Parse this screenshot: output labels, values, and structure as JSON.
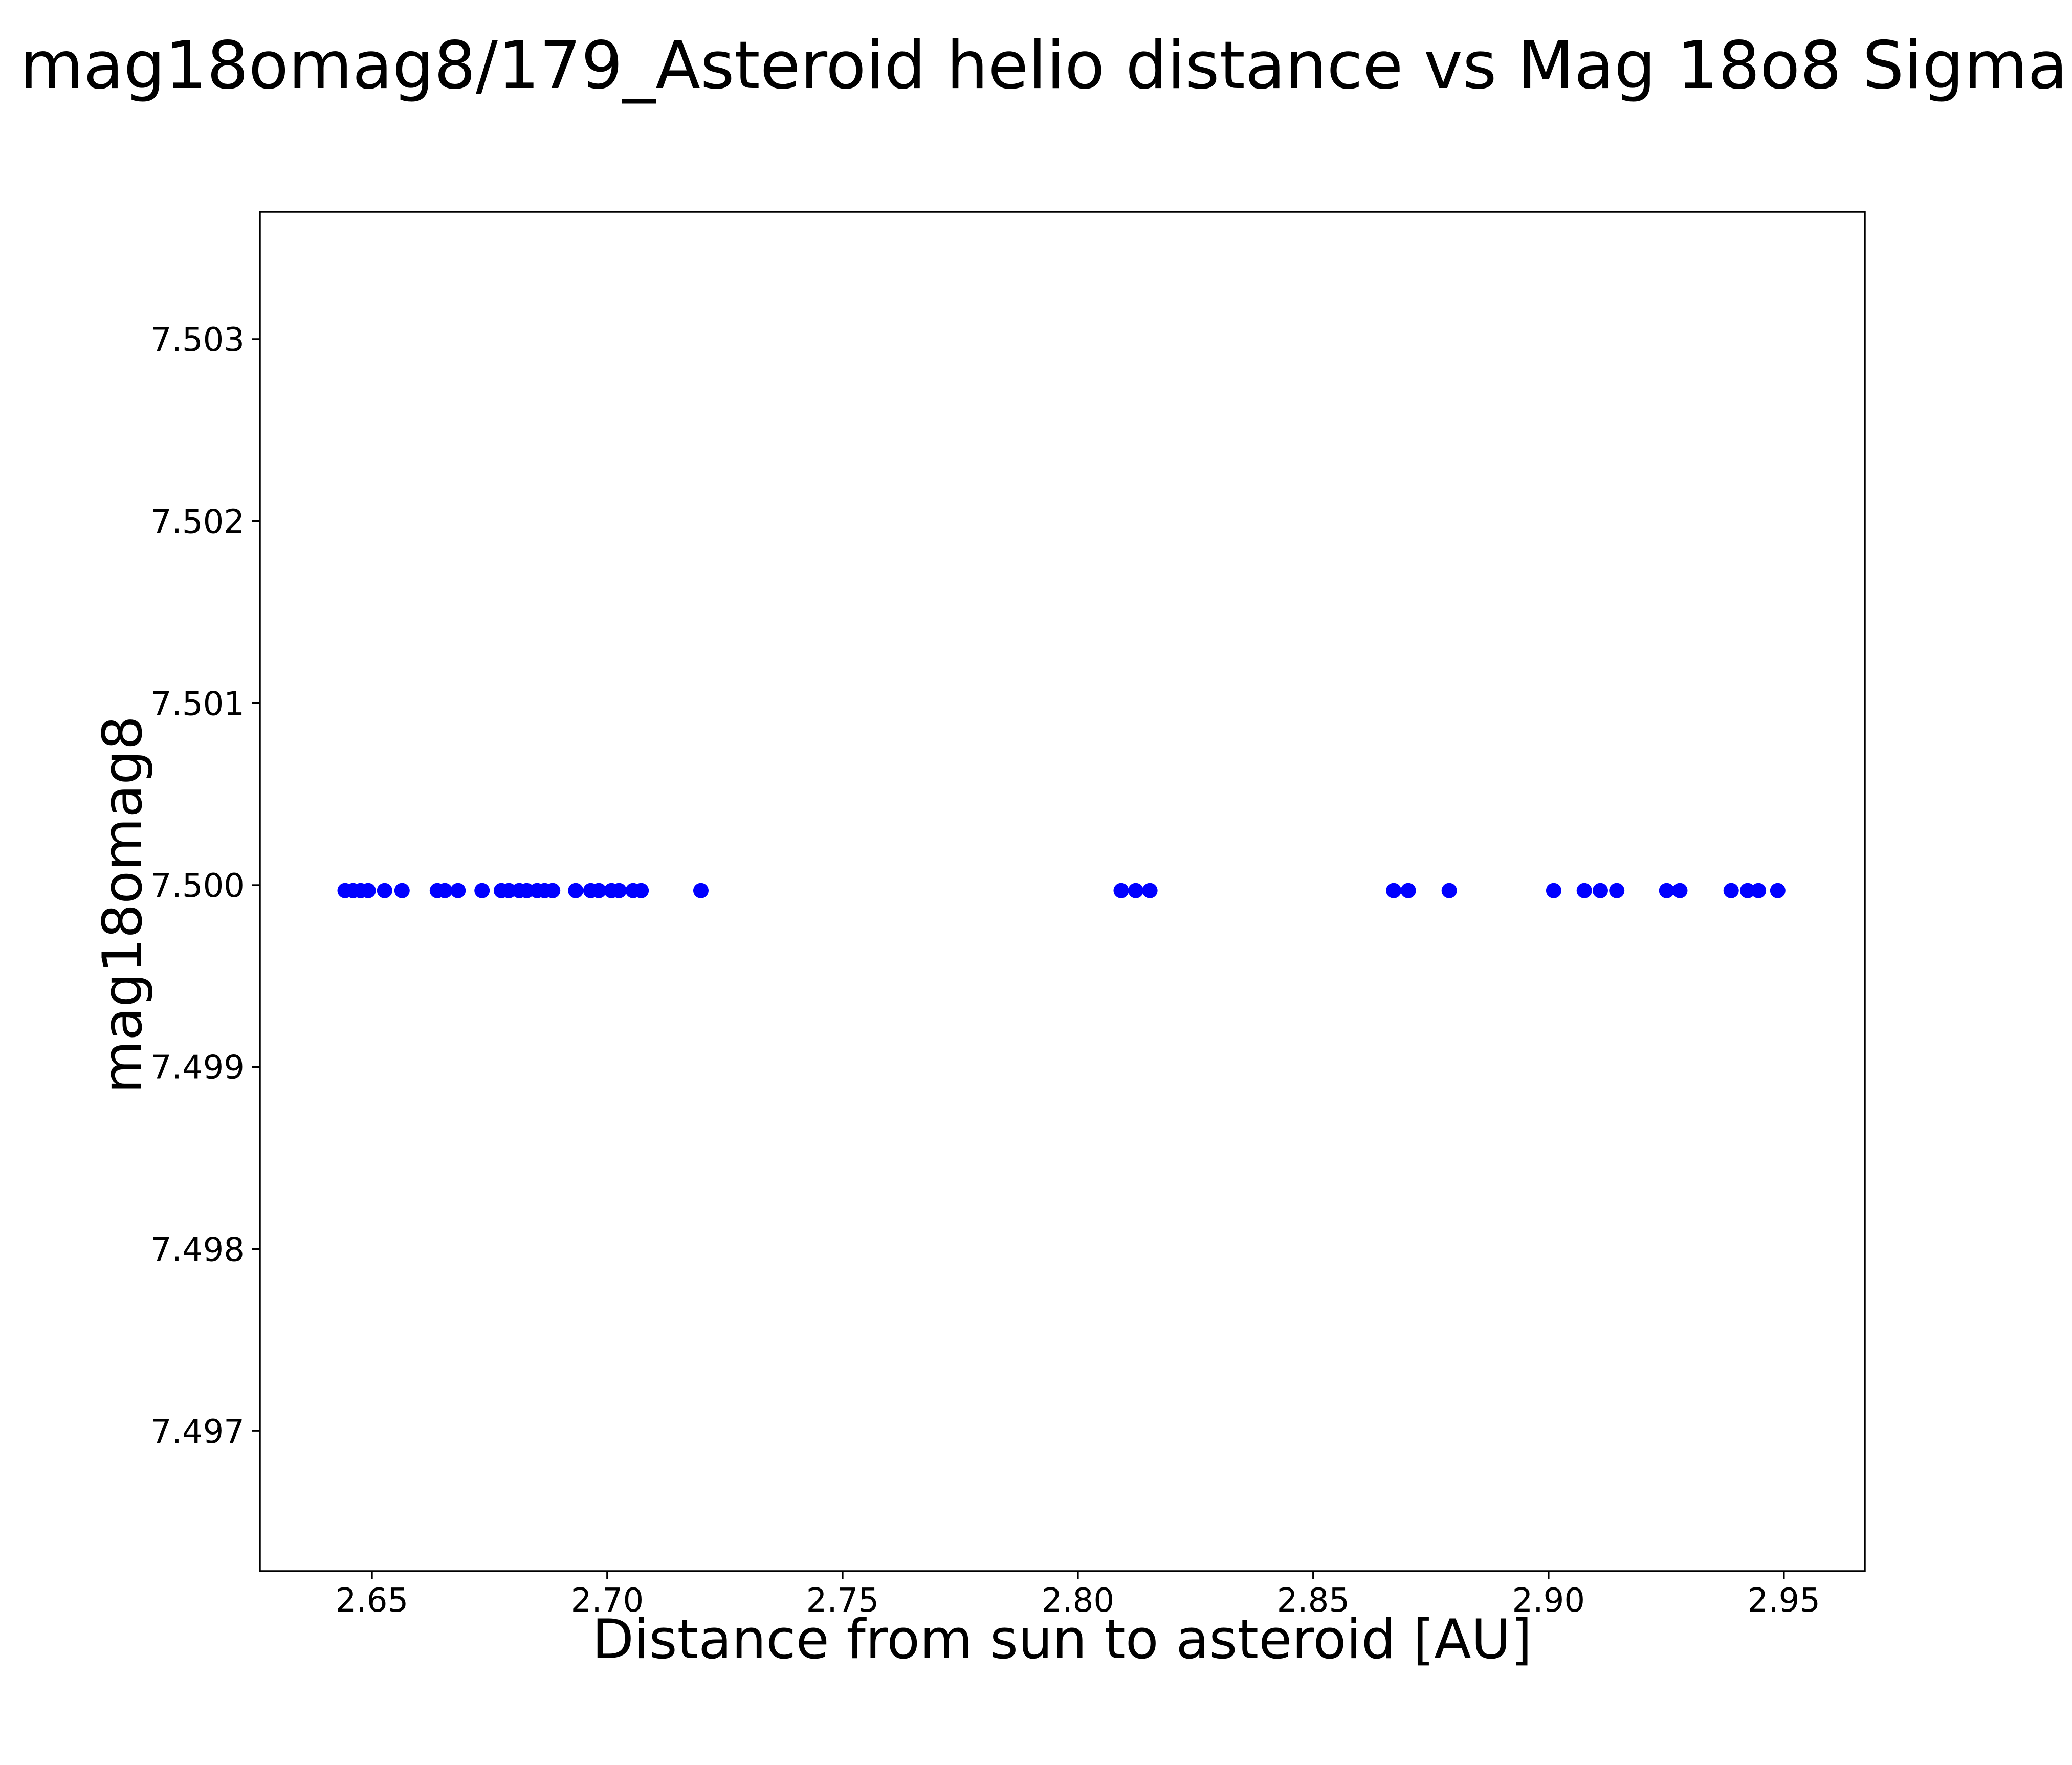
{
  "chart_data": {
    "type": "scatter",
    "title": "mag18omag8/179_Asteroid helio distance vs Mag 18o8 Sigma",
    "xlabel": "Distance from sun to asteroid [AU]",
    "ylabel": "mag18omag8",
    "grid": false,
    "legend": false,
    "marker_shape": "circle",
    "marker_color": "#0000ff",
    "axis_color": "#000000",
    "background_color": "#ffffff",
    "xlim": [
      2.6262,
      2.9672
    ],
    "ylim": [
      7.49623,
      7.5037
    ],
    "xticks": [
      2.65,
      2.7,
      2.75,
      2.8,
      2.85,
      2.9,
      2.95
    ],
    "xtick_labels": [
      "2.65",
      "2.70",
      "2.75",
      "2.80",
      "2.85",
      "2.90",
      "2.95"
    ],
    "yticks": [
      7.497,
      7.498,
      7.499,
      7.5,
      7.501,
      7.502,
      7.503
    ],
    "ytick_labels": [
      "7.497",
      "7.498",
      "7.499",
      "7.500",
      "7.501",
      "7.502",
      "7.503"
    ],
    "y_value_constant": 7.49997,
    "x_values": [
      2.6443,
      2.646,
      2.6476,
      2.6492,
      2.6527,
      2.6564,
      2.6639,
      2.6655,
      2.6683,
      2.6734,
      2.6775,
      2.6791,
      2.6813,
      2.6829,
      2.6851,
      2.6867,
      2.6884,
      2.6933,
      2.6965,
      2.6982,
      2.7009,
      2.7025,
      2.7055,
      2.7072,
      2.7199,
      2.8092,
      2.8123,
      2.8153,
      2.8671,
      2.8702,
      2.8789,
      2.9011,
      2.9076,
      2.911,
      2.9145,
      2.9251,
      2.9279,
      2.9388,
      2.9423,
      2.9446,
      2.9487
    ]
  }
}
